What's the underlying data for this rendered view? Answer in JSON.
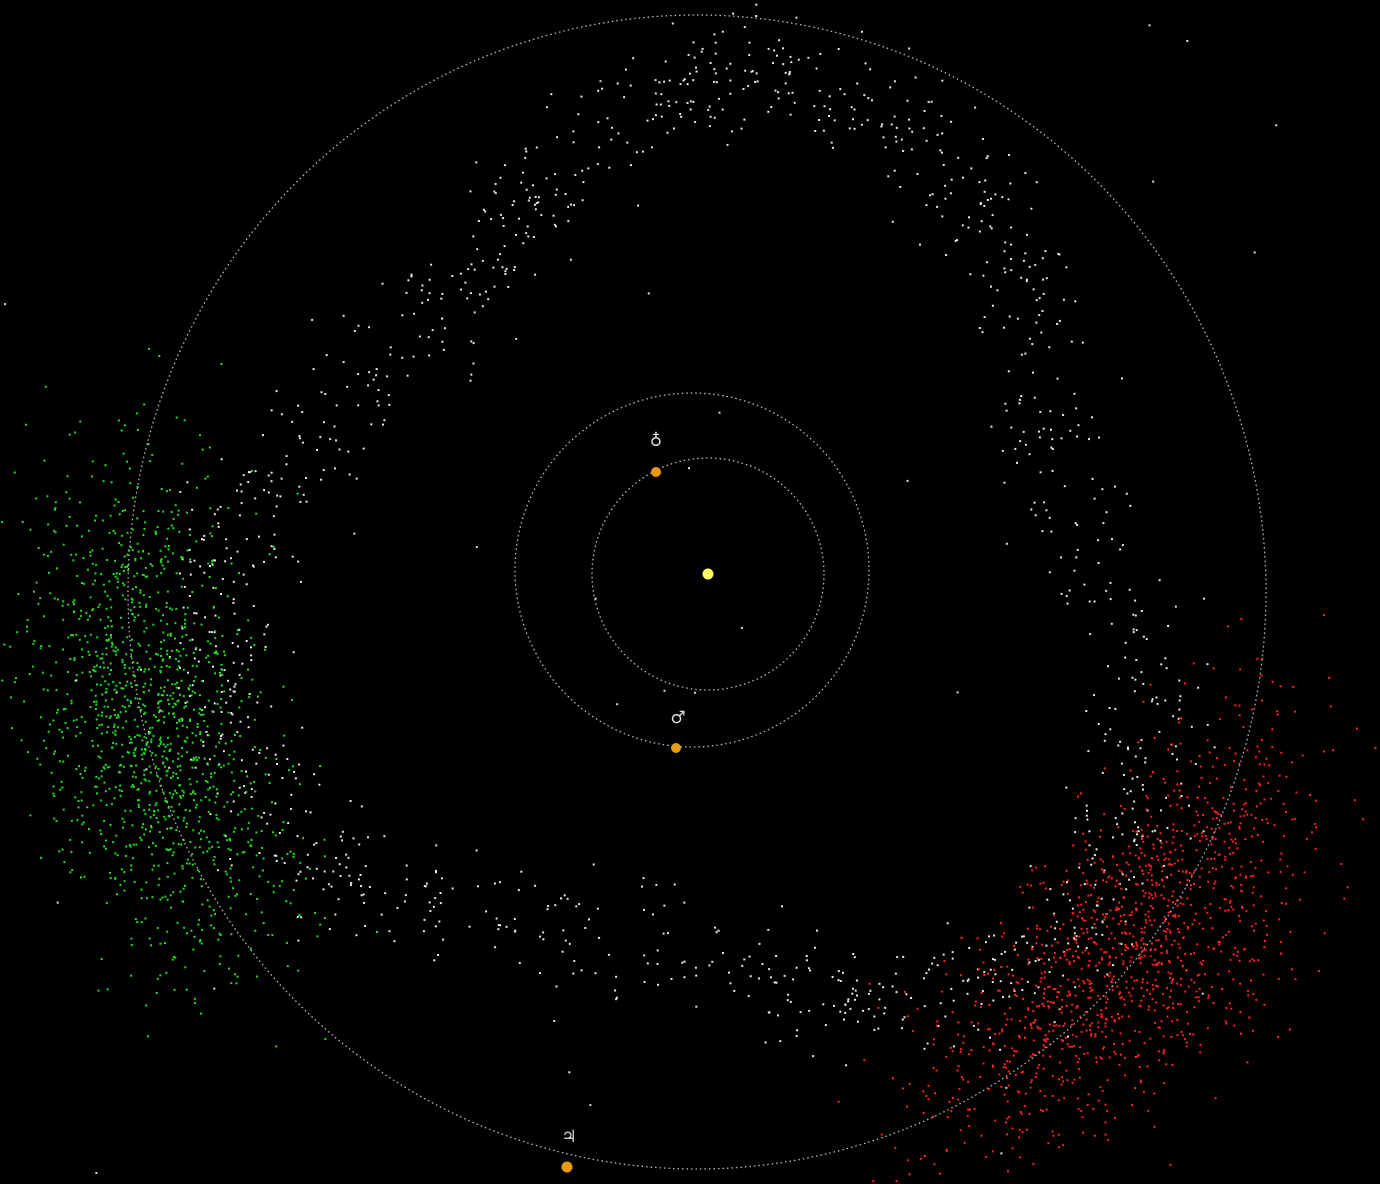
{
  "planets": {
    "earth": {
      "symbol": "♁"
    },
    "mars": {
      "symbol": "♂"
    },
    "jupiter": {
      "symbol": "♃"
    }
  }
}
